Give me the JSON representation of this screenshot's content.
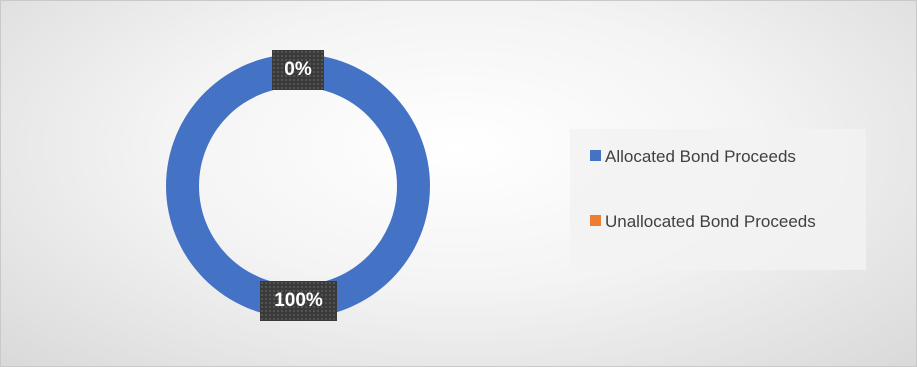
{
  "chart_data": {
    "type": "pie",
    "variant": "donut",
    "categories": [
      "Allocated Bond Proceeds",
      "Unallocated Bond Proceeds"
    ],
    "values": [
      100,
      0
    ],
    "data_labels": [
      "100%",
      "0%"
    ],
    "colors": [
      "#4472C4",
      "#ED7D31"
    ],
    "title": "",
    "legend": {
      "position": "right",
      "entries": [
        "Allocated Bond Proceeds",
        "Unallocated Bond Proceeds"
      ]
    }
  }
}
